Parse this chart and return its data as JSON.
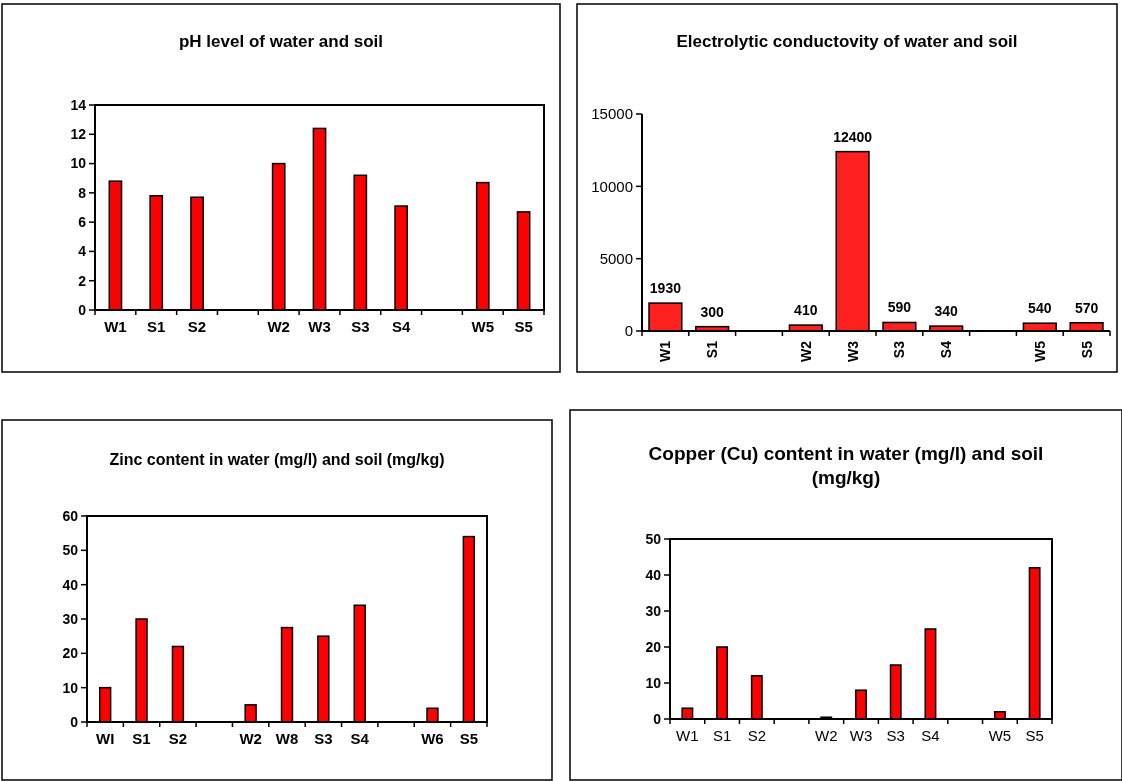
{
  "chart_data": [
    {
      "type": "bar",
      "title": "pH level of water and soil",
      "categories": [
        "W1",
        "S1",
        "S2",
        null,
        "W2",
        "W3",
        "S3",
        "S4",
        null,
        "W5",
        "S5"
      ],
      "values": [
        8.8,
        7.8,
        7.7,
        null,
        10.0,
        12.4,
        9.2,
        7.1,
        null,
        8.7,
        6.7
      ],
      "color": "#ff0000",
      "ylim": [
        0,
        14
      ],
      "yticks": [
        0,
        2,
        4,
        6,
        8,
        10,
        12,
        14
      ]
    },
    {
      "type": "bar",
      "title": "Electrolytic conductovity of water and soil",
      "categories": [
        "W1",
        "S1",
        null,
        "W2",
        "W3",
        "S3",
        "S4",
        null,
        "W5",
        "S5"
      ],
      "values": [
        1930,
        300,
        null,
        410,
        12400,
        590,
        340,
        null,
        540,
        570
      ],
      "color": "#ff2020",
      "ylim": [
        0,
        15000
      ],
      "yticks": [
        0,
        5000,
        10000,
        15000
      ],
      "data_labels": true
    },
    {
      "type": "bar",
      "title": "Zinc content in water (mg/l) and soil (mg/kg)",
      "categories": [
        "WI",
        "S1",
        "S2",
        null,
        "W2",
        "W8",
        "S3",
        "S4",
        null,
        "W6",
        "S5"
      ],
      "values": [
        10,
        30,
        22,
        null,
        5,
        27.5,
        25,
        34,
        null,
        4,
        54
      ],
      "color": "#ff0000",
      "ylim": [
        0,
        60
      ],
      "yticks": [
        0,
        10,
        20,
        30,
        40,
        50,
        60
      ]
    },
    {
      "type": "bar",
      "title": "Copper (Cu) content in water (mg/l) and soil (mg/kg)",
      "categories": [
        "W1",
        "S1",
        "S2",
        null,
        "W2",
        "W3",
        "S3",
        "S4",
        null,
        "W5",
        "S5"
      ],
      "values": [
        3,
        20,
        12,
        null,
        0.5,
        8,
        15,
        25,
        null,
        2,
        42
      ],
      "color": "#ff0000",
      "ylim": [
        0,
        50
      ],
      "yticks": [
        0,
        10,
        20,
        30,
        40,
        50
      ]
    }
  ]
}
